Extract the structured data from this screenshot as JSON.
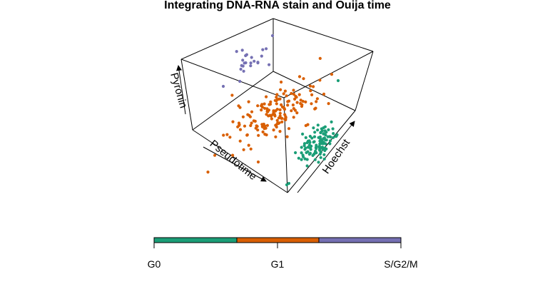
{
  "chart_data": {
    "type": "scatter",
    "title": "Integrating DNA-RNA stain and Ouija time",
    "axes": {
      "x_label": "Pseudotime",
      "y_label": "Hoechst",
      "z_label": "Pyronin"
    },
    "colorbar": {
      "ticks": [
        "G0",
        "G1",
        "S/G2/M"
      ],
      "colors": [
        "#1b9e77",
        "#d95f02",
        "#7570b3"
      ]
    },
    "groups": [
      {
        "label": "G0",
        "color": "#1b9e77",
        "count": 110
      },
      {
        "label": "G1",
        "color": "#d95f02",
        "count": 160
      },
      {
        "label": "S/G2/M",
        "color": "#7570b3",
        "count": 24
      }
    ]
  }
}
